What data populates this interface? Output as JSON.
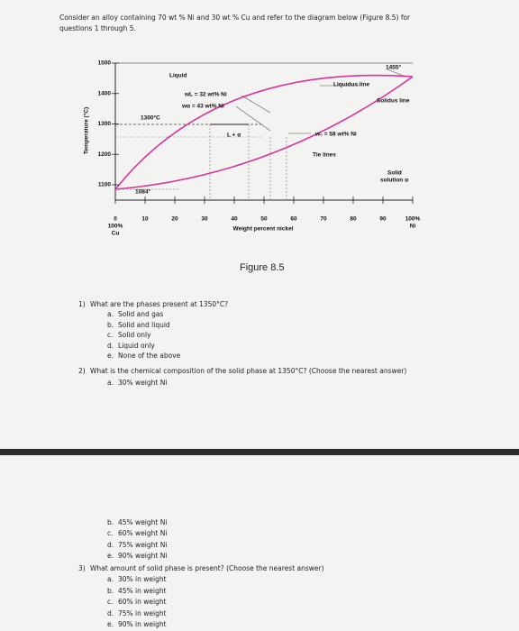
{
  "header": {
    "intro_lines": [
      "Consider an alloy containing 70 wt % Ni and 30 wt % Cu and refer to the diagram below (Figure 8.5) for",
      "questions 1 through 5."
    ]
  },
  "figure": {
    "caption": "Figure 8.5",
    "y_axis_label": "Temperature (°C)",
    "x_axis_label": "Weight percent nickel",
    "yticks": [
      "1500",
      "1400",
      "1300",
      "1200",
      "1100"
    ],
    "xticks": [
      "0",
      "10",
      "20",
      "30",
      "40",
      "50",
      "60",
      "70",
      "80",
      "90",
      "100%"
    ],
    "x_left_end": "100%",
    "x_left_element": "Cu",
    "x_right_element": "Ni",
    "labels": {
      "liquid": "Liquid",
      "liquidus": "Liquidus line",
      "solidus": "Solidus line",
      "t1455": "1455°",
      "t1300": "1300°C",
      "t1084": "1084°",
      "wl": "wL = 32 wt% Ni",
      "wa": "wα = 43 wt% Ni",
      "l_alpha": "L + α",
      "w0": "w₀ = 58 wt% Ni",
      "tie": "Tie lines",
      "solid1": "Solid",
      "solid2": "solution α"
    }
  },
  "questions": [
    {
      "number": "1)",
      "text": "What are the phases present at 1350°C?",
      "options": [
        {
          "letter": "a.",
          "text": "Solid and gas"
        },
        {
          "letter": "b.",
          "text": "Solid and liquid"
        },
        {
          "letter": "c.",
          "text": "Solid only"
        },
        {
          "letter": "d.",
          "text": "Liquid only"
        },
        {
          "letter": "e.",
          "text": "None of the above"
        }
      ]
    },
    {
      "number": "2)",
      "text": "What is the chemical composition of the solid phase at 1350°C? (Choose the nearest answer)",
      "options": [
        {
          "letter": "a.",
          "text": "30% weight Ni"
        },
        {
          "letter": "b.",
          "text": "45% weight Ni"
        },
        {
          "letter": "c.",
          "text": "60% weight Ni"
        },
        {
          "letter": "d.",
          "text": "75% weight Ni"
        },
        {
          "letter": "e.",
          "text": "90% weight Ni"
        }
      ]
    },
    {
      "number": "3)",
      "text": "What amount of solid phase is present? (Choose the nearest answer)",
      "options": [
        {
          "letter": "a.",
          "text": "30% in weight"
        },
        {
          "letter": "b.",
          "text": "45% in weight"
        },
        {
          "letter": "c.",
          "text": "60% in weight"
        },
        {
          "letter": "d.",
          "text": "75% in weight"
        },
        {
          "letter": "e.",
          "text": "90% in weight"
        }
      ]
    }
  ]
}
